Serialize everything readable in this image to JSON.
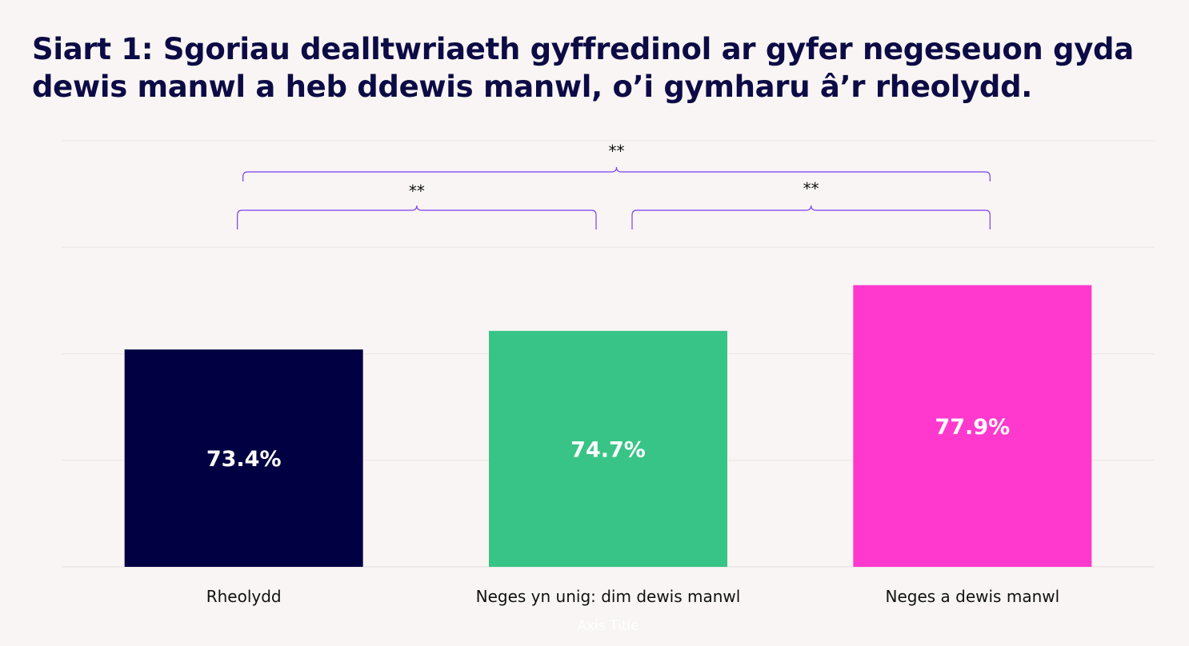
{
  "chart_data": {
    "type": "bar",
    "title": "Siart 1: Sgoriau dealltwriaeth gyffredinol ar gyfer negeseuon gyda dewis manwl a heb ddewis manwl, o’i gymharu â’r rheolydd.",
    "categories": [
      "Rheolydd",
      "Neges yn unig: dim dewis manwl",
      "Neges a dewis manwl"
    ],
    "values": [
      73.4,
      74.7,
      77.9
    ],
    "data_labels": [
      "73.4%",
      "74.7%",
      "77.9%"
    ],
    "colors": [
      "#010043",
      "#38c486",
      "#ff39cd"
    ],
    "xlabel": "Axis Title",
    "ylabel": "",
    "ylim": [
      0,
      100
    ],
    "grid": true,
    "legend": "none",
    "significance": [
      {
        "from": 0,
        "to": 1,
        "label": "**"
      },
      {
        "from": 1,
        "to": 2,
        "label": "**"
      },
      {
        "from": 0,
        "to": 2,
        "label": "**"
      }
    ]
  }
}
